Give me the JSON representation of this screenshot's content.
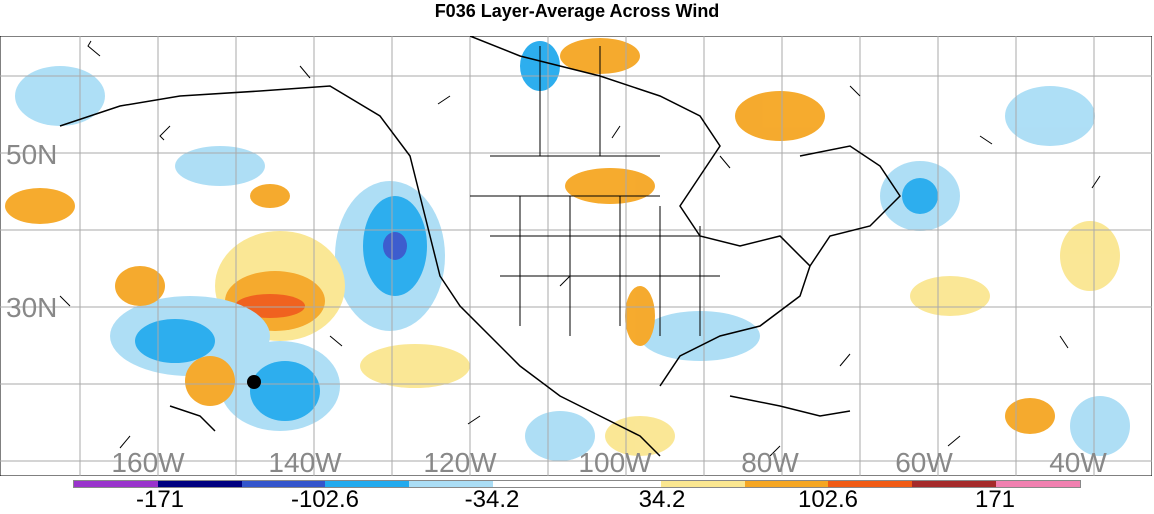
{
  "title": "F036 Layer-Average Across Wind",
  "lat_labels": [
    "50N",
    "30N"
  ],
  "lon_labels": [
    "160W",
    "140W",
    "120W",
    "100W",
    "80W",
    "60W",
    "40W"
  ],
  "colorbar": {
    "colors": [
      "#9933cc",
      "#000080",
      "#3355cc",
      "#22aaee",
      "#aaddf5",
      "#ffffff",
      "#ffffff",
      "#fae690",
      "#f5a623",
      "#f05a14",
      "#a52a2a",
      "#f080b0"
    ],
    "labels": [
      "-171",
      "-102.6",
      "-34.2",
      "34.2",
      "102.6",
      "171"
    ]
  },
  "markers": [
    {
      "name": "storm-center-dot"
    }
  ]
}
